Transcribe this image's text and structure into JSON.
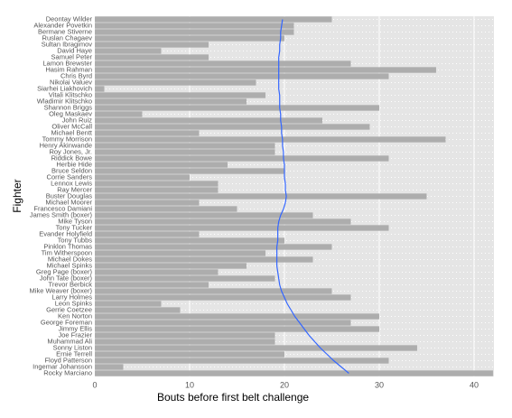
{
  "chart_data": {
    "type": "bar",
    "orientation": "horizontal",
    "xlabel": "Bouts before first belt challenge",
    "ylabel": "Fighter",
    "categories": [
      "Deontay Wilder",
      "Alexander Povetkin",
      "Bermane Stiverne",
      "Ruslan Chagaev",
      "Sultan Ibragimov",
      "David Haye",
      "Samuel Peter",
      "Lamon Brewster",
      "Hasim Rahman",
      "Chris Byrd",
      "Nikolai Valuev",
      "Siarhei Liakhovich",
      "Vitali Klitschko",
      "Wladimir Klitschko",
      "Shannon Briggs",
      "Oleg Maskaev",
      "John Ruiz",
      "Oliver McCall",
      "Michael Bentt",
      "Tommy Morrison",
      "Henry Akinwande",
      "Roy Jones, Jr.",
      "Riddick Bowe",
      "Herbie Hide",
      "Bruce Seldon",
      "Corrie Sanders",
      "Lennox Lewis",
      "Ray Mercer",
      "Buster Douglas",
      "Michael Moorer",
      "Francesco Damiani",
      "James Smith (boxer)",
      "Mike Tyson",
      "Tony Tucker",
      "Evander Holyfield",
      "Tony Tubbs",
      "Pinklon Thomas",
      "Tim Witherspoon",
      "Michael Dokes",
      "Michael Spinks",
      "Greg Page (boxer)",
      "John Tate (boxer)",
      "Trevor Berbick",
      "Mike Weaver (boxer)",
      "Larry Holmes",
      "Leon Spinks",
      "Gerrie Coetzee",
      "Ken Norton",
      "George Foreman",
      "Jimmy Ellis",
      "Joe Frazier",
      "Muhammad Ali",
      "Sonny Liston",
      "Ernie Terrell",
      "Floyd Patterson",
      "Ingemar Johansson",
      "Rocky Marciano"
    ],
    "series": [
      {
        "type": "bar",
        "color": "#adadad",
        "values": [
          25,
          21,
          21,
          20,
          12,
          7,
          12,
          27,
          36,
          31,
          17,
          1,
          18,
          16,
          30,
          5,
          24,
          29,
          11,
          37,
          19,
          19,
          31,
          14,
          20,
          10,
          13,
          13,
          35,
          11,
          15,
          23,
          27,
          31,
          11,
          20,
          25,
          18,
          23,
          16,
          13,
          19,
          12,
          25,
          27,
          7,
          9,
          30,
          27,
          30,
          19,
          19,
          34,
          20,
          31,
          3,
          42
        ]
      },
      {
        "type": "line",
        "color": "#3366ff",
        "values": [
          19.8,
          19.7,
          19.6,
          19.6,
          19.5,
          19.5,
          19.4,
          19.4,
          19.4,
          19.4,
          19.4,
          19.4,
          19.5,
          19.5,
          19.5,
          19.6,
          19.6,
          19.7,
          19.7,
          19.8,
          19.8,
          19.9,
          19.9,
          20.0,
          20.0,
          20.0,
          20.1,
          20.1,
          20.2,
          20.1,
          19.9,
          19.6,
          19.4,
          19.3,
          19.3,
          19.3,
          19.2,
          19.2,
          19.2,
          19.2,
          19.3,
          19.4,
          19.5,
          19.7,
          20.0,
          20.3,
          20.7,
          21.1,
          21.6,
          22.1,
          22.6,
          23.2,
          23.8,
          24.5,
          25.2,
          26.0,
          26.8
        ]
      }
    ],
    "xlim": [
      0,
      42.1
    ],
    "xticks": [
      0,
      10,
      20,
      30,
      40
    ],
    "grid": true
  }
}
